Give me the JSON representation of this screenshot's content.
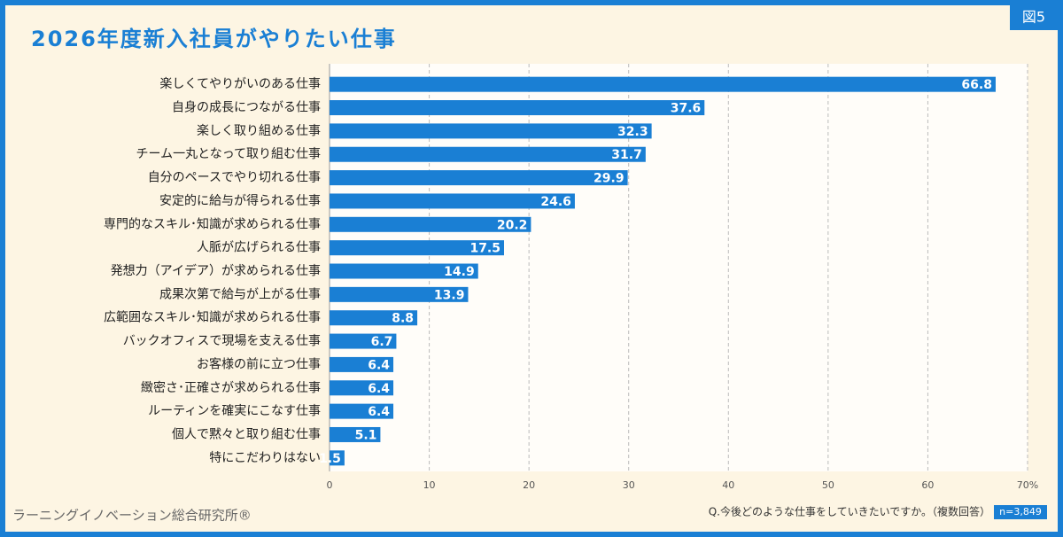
{
  "chart_data": {
    "type": "bar",
    "orientation": "horizontal",
    "title": "2026年度新入社員がやりたい仕事",
    "figure_label": "図5",
    "categories": [
      "楽しくてやりがいのある仕事",
      "自身の成長につながる仕事",
      "楽しく取り組める仕事",
      "チーム一丸となって取り組む仕事",
      "自分のペースでやり切れる仕事",
      "安定的に給与が得られる仕事",
      "専門的なスキル･知識が求められる仕事",
      "人脈が広げられる仕事",
      "発想力（アイデア）が求められる仕事",
      "成果次第で給与が上がる仕事",
      "広範囲なスキル･知識が求められる仕事",
      "バックオフィスで現場を支える仕事",
      "お客様の前に立つ仕事",
      "緻密さ･正確さが求められる仕事",
      "ルーティンを確実にこなす仕事",
      "個人で黙々と取り組む仕事",
      "特にこだわりはない"
    ],
    "values": [
      66.8,
      37.6,
      32.3,
      31.7,
      29.9,
      24.6,
      20.2,
      17.5,
      14.9,
      13.9,
      8.8,
      6.7,
      6.4,
      6.4,
      6.4,
      5.1,
      1.5
    ],
    "color": "#1a7fd4",
    "xlim": [
      0,
      70
    ],
    "xticks": [
      0,
      10,
      20,
      30,
      40,
      50,
      60,
      {
        "value": 70,
        "label": "70%"
      }
    ],
    "grid": true,
    "question": "Q.今後どのような仕事をしていきたいですか。（複数回答）",
    "sample": "n=3,849",
    "source": "ラーニングイノベーション総合研究所®"
  }
}
